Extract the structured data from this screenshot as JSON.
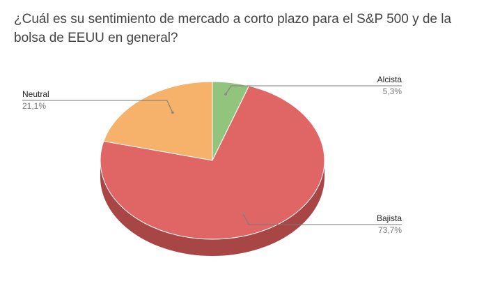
{
  "chart_data": {
    "type": "pie",
    "title": "¿Cuál es su sentimiento de mercado a corto plazo para el S&P 500 y de la bolsa de EEUU en general?",
    "three_d": true,
    "slices": [
      {
        "label": "Alcista",
        "value": 5.3,
        "value_label": "5,3%",
        "color": "#93c47d",
        "side_color": "#6e9a5a"
      },
      {
        "label": "Bajista",
        "value": 73.7,
        "value_label": "73,7%",
        "color": "#e06666",
        "side_color": "#a84646"
      },
      {
        "label": "Neutral",
        "value": 21.1,
        "value_label": "21,1%",
        "color": "#f6b26b",
        "side_color": "#c08648"
      }
    ]
  }
}
